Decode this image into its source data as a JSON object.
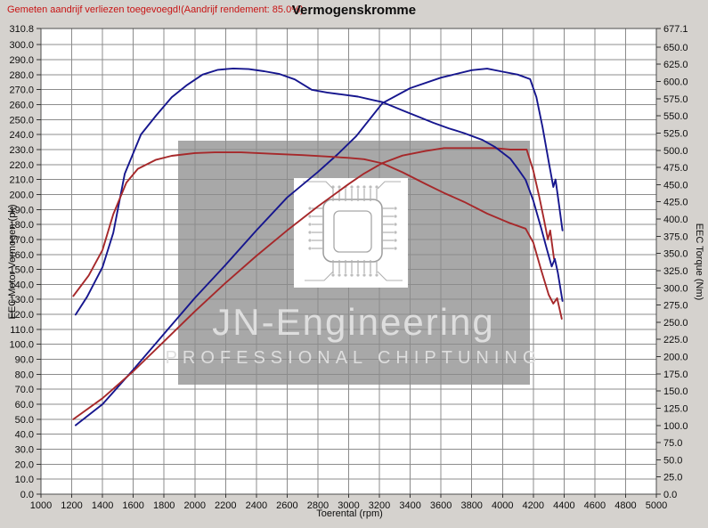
{
  "page": {
    "warning": "Gemeten aandrijf verliezen toegevoegd!(Aandrijf rendement: 85.0%)",
    "title": "Vermogenskromme"
  },
  "watermark": {
    "line1": "JN-Engineering",
    "line2": "PROFESSIONAL  CHIPTUNING",
    "icon": "microchip-icon",
    "box_color": "#a8a8a8",
    "text_color": "#dedede"
  },
  "colors": {
    "page_bg": "#d5d2ce",
    "plot_bg": "#ffffff",
    "grid": "#8c8c8c",
    "plot_border": "#4d4d4d",
    "curve_blue": "#16168e",
    "curve_red": "#a6282a",
    "warning_text": "#c81414"
  },
  "chart_data": {
    "type": "line",
    "title": "Vermogenskromme",
    "xlabel": "Toerental (rpm)",
    "ylabel_left": "EEC Motor Vermogen (pk)",
    "ylabel_right": "EEC Torque (Nm)",
    "xlim": [
      1000,
      5000
    ],
    "ylim_left": [
      0,
      310.8
    ],
    "ylim_right": [
      0,
      677.1
    ],
    "grid": true,
    "legend": "none",
    "x_ticks": [
      1000,
      1200,
      1400,
      1600,
      1800,
      2000,
      2200,
      2400,
      2600,
      2800,
      3000,
      3200,
      3400,
      3600,
      3800,
      4000,
      4200,
      4400,
      4600,
      4800,
      5000
    ],
    "y_left_ticks": [
      310.8,
      300,
      290,
      280,
      270,
      260,
      250,
      240,
      230,
      220,
      210,
      200,
      190,
      180,
      170,
      160,
      150,
      140,
      130,
      120,
      110,
      100,
      90,
      80,
      70,
      60,
      50,
      40,
      30,
      20,
      10,
      0
    ],
    "y_right_ticks": [
      677.1,
      650,
      625,
      600,
      575,
      550,
      525,
      500,
      475,
      450,
      425,
      400,
      375,
      350,
      325,
      300,
      275,
      250,
      225,
      200,
      175,
      150,
      125,
      100,
      75,
      50,
      25,
      0
    ],
    "series": [
      {
        "name": "blue-power-pk",
        "axis": "left",
        "color": "#16168e",
        "points": [
          [
            1225,
            46
          ],
          [
            1400,
            60
          ],
          [
            1600,
            83
          ],
          [
            1800,
            107
          ],
          [
            2000,
            131
          ],
          [
            2200,
            153
          ],
          [
            2400,
            176
          ],
          [
            2600,
            198
          ],
          [
            2800,
            215
          ],
          [
            2930,
            227
          ],
          [
            3050,
            239
          ],
          [
            3220,
            261
          ],
          [
            3400,
            271
          ],
          [
            3600,
            278
          ],
          [
            3800,
            283
          ],
          [
            3900,
            284
          ],
          [
            4000,
            282
          ],
          [
            4100,
            280
          ],
          [
            4180,
            277
          ],
          [
            4220,
            265
          ],
          [
            4260,
            245
          ],
          [
            4300,
            222
          ],
          [
            4330,
            205
          ],
          [
            4345,
            210
          ],
          [
            4365,
            195
          ],
          [
            4390,
            176
          ]
        ]
      },
      {
        "name": "red-power-pk",
        "axis": "left",
        "color": "#a6282a",
        "points": [
          [
            1210,
            50
          ],
          [
            1400,
            64
          ],
          [
            1600,
            82
          ],
          [
            1800,
            102
          ],
          [
            2000,
            122
          ],
          [
            2200,
            141
          ],
          [
            2400,
            159
          ],
          [
            2600,
            176
          ],
          [
            2800,
            192
          ],
          [
            3000,
            207
          ],
          [
            3100,
            214
          ],
          [
            3220,
            221
          ],
          [
            3350,
            226
          ],
          [
            3500,
            229
          ],
          [
            3620,
            231
          ],
          [
            3800,
            231
          ],
          [
            3950,
            231
          ],
          [
            4050,
            230
          ],
          [
            4157,
            230
          ],
          [
            4200,
            216
          ],
          [
            4240,
            198
          ],
          [
            4270,
            183
          ],
          [
            4295,
            170
          ],
          [
            4310,
            176
          ],
          [
            4335,
            157
          ]
        ]
      },
      {
        "name": "blue-torque-nm",
        "axis": "right",
        "color": "#16168e",
        "points": [
          [
            1225,
            261
          ],
          [
            1300,
            287
          ],
          [
            1400,
            330
          ],
          [
            1470,
            380
          ],
          [
            1545,
            466
          ],
          [
            1650,
            523
          ],
          [
            1750,
            551
          ],
          [
            1850,
            577
          ],
          [
            1950,
            595
          ],
          [
            2050,
            610
          ],
          [
            2150,
            617
          ],
          [
            2250,
            619
          ],
          [
            2350,
            618
          ],
          [
            2450,
            615
          ],
          [
            2550,
            611
          ],
          [
            2650,
            603
          ],
          [
            2760,
            588
          ],
          [
            2860,
            584
          ],
          [
            2960,
            581
          ],
          [
            3060,
            578
          ],
          [
            3160,
            573
          ],
          [
            3220,
            570
          ],
          [
            3350,
            558
          ],
          [
            3450,
            549
          ],
          [
            3550,
            540
          ],
          [
            3650,
            532
          ],
          [
            3750,
            525
          ],
          [
            3870,
            515
          ],
          [
            3950,
            505
          ],
          [
            4050,
            488
          ],
          [
            4100,
            473
          ],
          [
            4150,
            457
          ],
          [
            4200,
            427
          ],
          [
            4250,
            388
          ],
          [
            4290,
            355
          ],
          [
            4320,
            331
          ],
          [
            4340,
            342
          ],
          [
            4360,
            322
          ],
          [
            4390,
            281
          ]
        ]
      },
      {
        "name": "red-torque-nm",
        "axis": "right",
        "color": "#a6282a",
        "points": [
          [
            1210,
            288
          ],
          [
            1310,
            318
          ],
          [
            1400,
            355
          ],
          [
            1470,
            407
          ],
          [
            1555,
            453
          ],
          [
            1630,
            473
          ],
          [
            1745,
            486
          ],
          [
            1850,
            492
          ],
          [
            2000,
            496
          ],
          [
            2130,
            497
          ],
          [
            2300,
            497
          ],
          [
            2500,
            495
          ],
          [
            2700,
            493
          ],
          [
            2850,
            491
          ],
          [
            3000,
            489
          ],
          [
            3100,
            487
          ],
          [
            3220,
            481
          ],
          [
            3350,
            468
          ],
          [
            3500,
            451
          ],
          [
            3620,
            438
          ],
          [
            3750,
            425
          ],
          [
            3900,
            408
          ],
          [
            4050,
            394
          ],
          [
            4150,
            386
          ],
          [
            4200,
            366
          ],
          [
            4250,
            327
          ],
          [
            4300,
            290
          ],
          [
            4330,
            277
          ],
          [
            4355,
            285
          ],
          [
            4385,
            255
          ]
        ]
      }
    ]
  }
}
